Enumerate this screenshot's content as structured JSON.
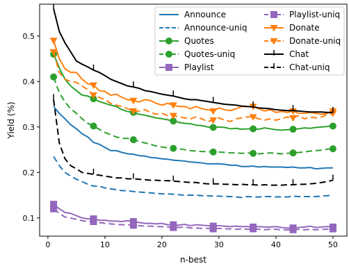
{
  "chart_data": {
    "type": "line",
    "xlabel": "n-best",
    "ylabel": "Yield (%)",
    "xlim": [
      -1.45,
      52.45
    ],
    "ylim": [
      0.06,
      0.57
    ],
    "xticks": [
      0,
      10,
      20,
      30,
      40,
      50
    ],
    "yticks": [
      0.1,
      0.2,
      0.3,
      0.4,
      0.5
    ],
    "xtick_labels": [
      "0",
      "10",
      "20",
      "30",
      "40",
      "50"
    ],
    "ytick_labels": [
      "0.1",
      "0.2",
      "0.3",
      "0.4",
      "0.5"
    ],
    "grid": false,
    "legend_position": "top-right",
    "legend_columns": 2,
    "series": [
      {
        "name": "Announce",
        "color": "#1f77b4",
        "dash": "solid",
        "marker": "none",
        "x": [
          1,
          2,
          3,
          4,
          5,
          6,
          7,
          8,
          9,
          10,
          11,
          12,
          13,
          14,
          15,
          16,
          17,
          18,
          19,
          20,
          21,
          22,
          23,
          24,
          25,
          26,
          27,
          28,
          29,
          30,
          31,
          32,
          33,
          34,
          35,
          36,
          37,
          38,
          39,
          40,
          41,
          42,
          43,
          44,
          45,
          46,
          47,
          48,
          49,
          50
        ],
        "y": [
          0.345,
          0.33,
          0.318,
          0.305,
          0.296,
          0.285,
          0.278,
          0.266,
          0.262,
          0.255,
          0.248,
          0.248,
          0.244,
          0.241,
          0.24,
          0.237,
          0.236,
          0.233,
          0.232,
          0.23,
          0.229,
          0.227,
          0.226,
          0.225,
          0.223,
          0.222,
          0.221,
          0.219,
          0.219,
          0.219,
          0.218,
          0.216,
          0.216,
          0.213,
          0.213,
          0.214,
          0.212,
          0.213,
          0.212,
          0.212,
          0.212,
          0.211,
          0.212,
          0.21,
          0.21,
          0.211,
          0.208,
          0.209,
          0.21,
          0.21
        ]
      },
      {
        "name": "Announce-uniq",
        "color": "#1f77b4",
        "dash": "dashed",
        "marker": "none",
        "x": [
          1,
          2,
          3,
          4,
          5,
          6,
          7,
          8,
          9,
          10,
          11,
          12,
          13,
          14,
          15,
          16,
          17,
          18,
          19,
          20,
          21,
          22,
          23,
          24,
          25,
          26,
          27,
          28,
          29,
          30,
          31,
          32,
          33,
          34,
          35,
          36,
          37,
          38,
          39,
          40,
          41,
          42,
          43,
          44,
          45,
          46,
          47,
          48,
          49,
          50
        ],
        "y": [
          0.235,
          0.215,
          0.2,
          0.192,
          0.185,
          0.18,
          0.174,
          0.17,
          0.17,
          0.166,
          0.164,
          0.162,
          0.16,
          0.16,
          0.158,
          0.157,
          0.156,
          0.155,
          0.154,
          0.153,
          0.153,
          0.152,
          0.151,
          0.15,
          0.15,
          0.15,
          0.149,
          0.149,
          0.148,
          0.148,
          0.147,
          0.147,
          0.146,
          0.145,
          0.147,
          0.146,
          0.146,
          0.147,
          0.147,
          0.146,
          0.147,
          0.146,
          0.148,
          0.147,
          0.147,
          0.147,
          0.147,
          0.148,
          0.149,
          0.15
        ]
      },
      {
        "name": "Quotes",
        "color": "#2ca02c",
        "dash": "solid",
        "marker": "circle",
        "marker_x": [
          1,
          8,
          15,
          22,
          29,
          36,
          43,
          50
        ],
        "x": [
          1,
          2,
          3,
          4,
          5,
          6,
          7,
          8,
          9,
          10,
          11,
          12,
          13,
          14,
          15,
          16,
          17,
          18,
          19,
          20,
          21,
          22,
          23,
          24,
          25,
          26,
          27,
          28,
          29,
          30,
          31,
          32,
          33,
          34,
          35,
          36,
          37,
          38,
          39,
          40,
          41,
          42,
          43,
          44,
          45,
          46,
          47,
          48,
          49,
          50
        ],
        "y": [
          0.46,
          0.43,
          0.405,
          0.39,
          0.38,
          0.37,
          0.368,
          0.362,
          0.356,
          0.352,
          0.348,
          0.345,
          0.338,
          0.334,
          0.332,
          0.328,
          0.326,
          0.323,
          0.32,
          0.318,
          0.316,
          0.313,
          0.31,
          0.308,
          0.307,
          0.304,
          0.303,
          0.3,
          0.299,
          0.3,
          0.299,
          0.296,
          0.297,
          0.295,
          0.296,
          0.296,
          0.295,
          0.298,
          0.296,
          0.294,
          0.293,
          0.294,
          0.295,
          0.296,
          0.298,
          0.297,
          0.299,
          0.3,
          0.301,
          0.302
        ]
      },
      {
        "name": "Quotes-uniq",
        "color": "#2ca02c",
        "dash": "dashed",
        "marker": "circle",
        "marker_x": [
          1,
          8,
          15,
          22,
          29,
          36,
          43,
          50
        ],
        "x": [
          1,
          2,
          3,
          4,
          5,
          6,
          7,
          8,
          9,
          10,
          11,
          12,
          13,
          14,
          15,
          16,
          17,
          18,
          19,
          20,
          21,
          22,
          23,
          24,
          25,
          26,
          27,
          28,
          29,
          30,
          31,
          32,
          33,
          34,
          35,
          36,
          37,
          38,
          39,
          40,
          41,
          42,
          43,
          44,
          45,
          46,
          47,
          48,
          49,
          50
        ],
        "y": [
          0.41,
          0.375,
          0.355,
          0.34,
          0.33,
          0.318,
          0.308,
          0.302,
          0.295,
          0.288,
          0.283,
          0.278,
          0.275,
          0.275,
          0.272,
          0.268,
          0.265,
          0.262,
          0.258,
          0.256,
          0.254,
          0.253,
          0.252,
          0.25,
          0.248,
          0.247,
          0.246,
          0.246,
          0.245,
          0.245,
          0.244,
          0.243,
          0.243,
          0.242,
          0.243,
          0.242,
          0.241,
          0.242,
          0.243,
          0.242,
          0.241,
          0.242,
          0.243,
          0.244,
          0.245,
          0.247,
          0.248,
          0.249,
          0.251,
          0.252
        ]
      },
      {
        "name": "Playlist",
        "color": "#9467bd",
        "dash": "solid",
        "marker": "square",
        "marker_x": [
          1,
          8,
          15,
          22,
          29,
          36,
          43,
          50
        ],
        "x": [
          1,
          2,
          3,
          4,
          5,
          6,
          7,
          8,
          9,
          10,
          11,
          12,
          13,
          14,
          15,
          16,
          17,
          18,
          19,
          20,
          21,
          22,
          23,
          24,
          25,
          26,
          27,
          28,
          29,
          30,
          31,
          32,
          33,
          34,
          35,
          36,
          37,
          38,
          39,
          40,
          41,
          42,
          43,
          44,
          45,
          46,
          47,
          48,
          49,
          50
        ],
        "y": [
          0.13,
          0.12,
          0.112,
          0.11,
          0.105,
          0.1,
          0.098,
          0.098,
          0.095,
          0.095,
          0.093,
          0.093,
          0.092,
          0.094,
          0.092,
          0.09,
          0.088,
          0.088,
          0.087,
          0.088,
          0.085,
          0.085,
          0.084,
          0.086,
          0.083,
          0.085,
          0.084,
          0.083,
          0.082,
          0.083,
          0.082,
          0.081,
          0.082,
          0.081,
          0.081,
          0.08,
          0.081,
          0.08,
          0.08,
          0.081,
          0.079,
          0.078,
          0.078,
          0.079,
          0.08,
          0.082,
          0.079,
          0.08,
          0.081,
          0.08
        ]
      },
      {
        "name": "Playlist-uniq",
        "color": "#9467bd",
        "dash": "dashed",
        "marker": "square",
        "marker_x": [
          1,
          8,
          15,
          22,
          29,
          36,
          43,
          50
        ],
        "x": [
          1,
          2,
          3,
          4,
          5,
          6,
          7,
          8,
          9,
          10,
          11,
          12,
          13,
          14,
          15,
          16,
          17,
          18,
          19,
          20,
          21,
          22,
          23,
          24,
          25,
          26,
          27,
          28,
          29,
          30,
          31,
          32,
          33,
          34,
          35,
          36,
          37,
          38,
          39,
          40,
          41,
          42,
          43,
          44,
          45,
          46,
          47,
          48,
          49,
          50
        ],
        "y": [
          0.12,
          0.11,
          0.102,
          0.1,
          0.097,
          0.094,
          0.092,
          0.092,
          0.09,
          0.088,
          0.087,
          0.086,
          0.085,
          0.085,
          0.084,
          0.083,
          0.082,
          0.082,
          0.081,
          0.081,
          0.08,
          0.079,
          0.079,
          0.08,
          0.078,
          0.078,
          0.077,
          0.077,
          0.076,
          0.077,
          0.076,
          0.076,
          0.075,
          0.076,
          0.075,
          0.076,
          0.075,
          0.074,
          0.075,
          0.075,
          0.074,
          0.074,
          0.074,
          0.075,
          0.074,
          0.075,
          0.074,
          0.075,
          0.075,
          0.076
        ]
      },
      {
        "name": "Donate",
        "color": "#ff7f0e",
        "dash": "solid",
        "marker": "triangle-down",
        "marker_x": [
          1,
          8,
          15,
          22,
          29,
          36,
          43,
          50
        ],
        "x": [
          1,
          2,
          3,
          4,
          5,
          6,
          7,
          8,
          9,
          10,
          11,
          12,
          13,
          14,
          15,
          16,
          17,
          18,
          19,
          20,
          21,
          22,
          23,
          24,
          25,
          26,
          27,
          28,
          29,
          30,
          31,
          32,
          33,
          34,
          35,
          36,
          37,
          38,
          39,
          40,
          41,
          42,
          43,
          44,
          45,
          46,
          47,
          48,
          49,
          50
        ],
        "y": [
          0.49,
          0.45,
          0.428,
          0.42,
          0.42,
          0.405,
          0.395,
          0.392,
          0.38,
          0.378,
          0.37,
          0.372,
          0.365,
          0.36,
          0.358,
          0.355,
          0.36,
          0.358,
          0.352,
          0.348,
          0.352,
          0.348,
          0.345,
          0.345,
          0.34,
          0.345,
          0.34,
          0.338,
          0.335,
          0.342,
          0.338,
          0.336,
          0.34,
          0.345,
          0.345,
          0.345,
          0.34,
          0.335,
          0.338,
          0.332,
          0.334,
          0.332,
          0.335,
          0.33,
          0.33,
          0.332,
          0.33,
          0.328,
          0.33,
          0.335
        ]
      },
      {
        "name": "Donate-uniq",
        "color": "#ff7f0e",
        "dash": "dashed",
        "marker": "triangle-down",
        "marker_x": [
          1,
          8,
          15,
          22,
          29,
          36,
          43,
          50
        ],
        "x": [
          1,
          2,
          3,
          4,
          5,
          6,
          7,
          8,
          9,
          10,
          11,
          12,
          13,
          14,
          15,
          16,
          17,
          18,
          19,
          20,
          21,
          22,
          23,
          24,
          25,
          26,
          27,
          28,
          29,
          30,
          31,
          32,
          33,
          34,
          35,
          36,
          37,
          38,
          39,
          40,
          41,
          42,
          43,
          44,
          45,
          46,
          47,
          48,
          49,
          50
        ],
        "y": [
          0.465,
          0.42,
          0.405,
          0.4,
          0.398,
          0.39,
          0.382,
          0.37,
          0.365,
          0.36,
          0.352,
          0.348,
          0.345,
          0.34,
          0.335,
          0.335,
          0.338,
          0.332,
          0.328,
          0.33,
          0.325,
          0.325,
          0.322,
          0.32,
          0.318,
          0.322,
          0.318,
          0.312,
          0.315,
          0.32,
          0.315,
          0.312,
          0.318,
          0.32,
          0.322,
          0.322,
          0.318,
          0.315,
          0.318,
          0.315,
          0.318,
          0.322,
          0.32,
          0.325,
          0.318,
          0.322,
          0.32,
          0.322,
          0.328,
          0.33
        ]
      },
      {
        "name": "Chat",
        "color": "#000000",
        "dash": "solid",
        "marker": "vline",
        "marker_x": [
          1,
          8,
          15,
          22,
          29,
          36,
          43,
          50
        ],
        "x": [
          1,
          2,
          3,
          4,
          5,
          6,
          7,
          8,
          9,
          10,
          11,
          12,
          13,
          14,
          15,
          16,
          17,
          18,
          19,
          20,
          21,
          22,
          23,
          24,
          25,
          26,
          27,
          28,
          29,
          30,
          31,
          32,
          33,
          34,
          35,
          36,
          37,
          38,
          39,
          40,
          41,
          42,
          43,
          44,
          45,
          46,
          47,
          48,
          49,
          50
        ],
        "y": [
          0.56,
          0.51,
          0.485,
          0.465,
          0.445,
          0.438,
          0.432,
          0.425,
          0.42,
          0.413,
          0.405,
          0.4,
          0.395,
          0.39,
          0.388,
          0.385,
          0.38,
          0.378,
          0.375,
          0.372,
          0.37,
          0.368,
          0.365,
          0.362,
          0.36,
          0.36,
          0.358,
          0.356,
          0.354,
          0.352,
          0.35,
          0.349,
          0.348,
          0.346,
          0.345,
          0.344,
          0.342,
          0.341,
          0.34,
          0.338,
          0.337,
          0.336,
          0.336,
          0.335,
          0.334,
          0.333,
          0.333,
          0.333,
          0.332,
          0.332
        ]
      },
      {
        "name": "Chat-uniq",
        "color": "#000000",
        "dash": "dashed",
        "marker": "vline",
        "marker_x": [
          1,
          8,
          15,
          22,
          29,
          36,
          43,
          50
        ],
        "x": [
          1,
          2,
          3,
          4,
          5,
          6,
          7,
          8,
          9,
          10,
          11,
          12,
          13,
          14,
          15,
          16,
          17,
          18,
          19,
          20,
          21,
          22,
          23,
          24,
          25,
          26,
          27,
          28,
          29,
          30,
          31,
          32,
          33,
          34,
          35,
          36,
          37,
          38,
          39,
          40,
          41,
          42,
          43,
          44,
          45,
          46,
          47,
          48,
          49,
          50
        ],
        "y": [
          0.36,
          0.265,
          0.23,
          0.215,
          0.208,
          0.2,
          0.198,
          0.196,
          0.194,
          0.192,
          0.19,
          0.188,
          0.188,
          0.186,
          0.186,
          0.185,
          0.184,
          0.183,
          0.183,
          0.182,
          0.182,
          0.181,
          0.18,
          0.179,
          0.178,
          0.178,
          0.176,
          0.175,
          0.175,
          0.175,
          0.174,
          0.174,
          0.173,
          0.174,
          0.173,
          0.173,
          0.172,
          0.173,
          0.172,
          0.172,
          0.172,
          0.173,
          0.173,
          0.174,
          0.174,
          0.175,
          0.176,
          0.178,
          0.18,
          0.183
        ]
      }
    ]
  }
}
